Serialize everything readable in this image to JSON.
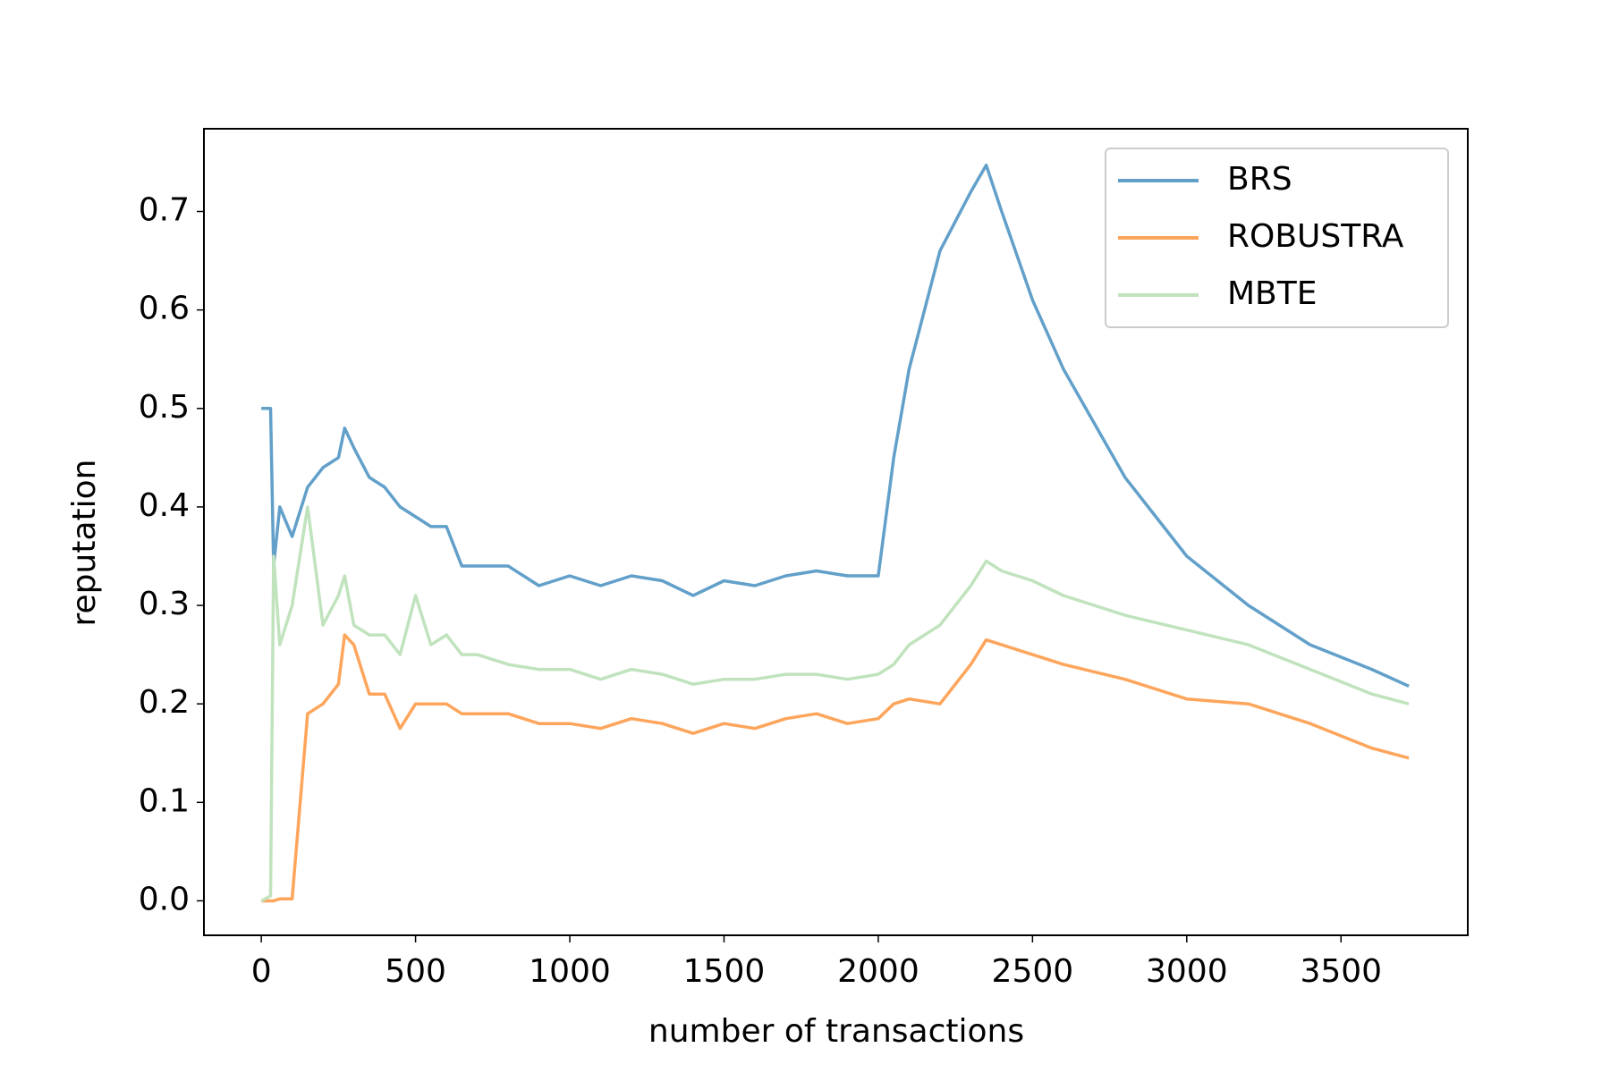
{
  "chart_data": {
    "type": "line",
    "xlabel": "number of transactions",
    "ylabel": "reputation",
    "x": [
      0,
      30,
      40,
      60,
      100,
      150,
      200,
      250,
      270,
      300,
      350,
      400,
      450,
      500,
      550,
      600,
      650,
      700,
      800,
      900,
      1000,
      1100,
      1200,
      1300,
      1400,
      1500,
      1600,
      1700,
      1800,
      1900,
      2000,
      2050,
      2100,
      2200,
      2300,
      2350,
      2400,
      2500,
      2600,
      2800,
      3000,
      3200,
      3400,
      3600,
      3720
    ],
    "series": [
      {
        "name": "BRS",
        "color": "#62a0ca",
        "values": [
          0.5,
          0.5,
          0.34,
          0.4,
          0.37,
          0.42,
          0.44,
          0.45,
          0.48,
          0.46,
          0.43,
          0.42,
          0.4,
          0.39,
          0.38,
          0.38,
          0.34,
          0.34,
          0.34,
          0.32,
          0.33,
          0.32,
          0.33,
          0.325,
          0.31,
          0.325,
          0.32,
          0.33,
          0.335,
          0.33,
          0.33,
          0.45,
          0.54,
          0.66,
          0.72,
          0.747,
          0.7,
          0.61,
          0.54,
          0.43,
          0.35,
          0.3,
          0.26,
          0.235,
          0.218
        ]
      },
      {
        "name": "ROBUSTRA",
        "color": "#fea55c",
        "values": [
          0,
          0,
          0,
          0.002,
          0.002,
          0.19,
          0.2,
          0.22,
          0.27,
          0.26,
          0.21,
          0.21,
          0.175,
          0.2,
          0.2,
          0.2,
          0.19,
          0.19,
          0.19,
          0.18,
          0.18,
          0.175,
          0.185,
          0.18,
          0.17,
          0.18,
          0.175,
          0.185,
          0.19,
          0.18,
          0.185,
          0.2,
          0.205,
          0.2,
          0.24,
          0.265,
          0.26,
          0.25,
          0.24,
          0.225,
          0.205,
          0.2,
          0.18,
          0.155,
          0.145
        ]
      },
      {
        "name": "MBTE",
        "color": "#c0e3bd",
        "values": [
          0,
          0.005,
          0.35,
          0.26,
          0.3,
          0.4,
          0.28,
          0.31,
          0.33,
          0.28,
          0.27,
          0.27,
          0.25,
          0.31,
          0.26,
          0.27,
          0.25,
          0.25,
          0.24,
          0.235,
          0.235,
          0.225,
          0.235,
          0.23,
          0.22,
          0.225,
          0.225,
          0.23,
          0.23,
          0.225,
          0.23,
          0.24,
          0.26,
          0.28,
          0.32,
          0.345,
          0.335,
          0.325,
          0.31,
          0.29,
          0.275,
          0.26,
          0.235,
          0.21,
          0.2
        ]
      }
    ],
    "xlim": [
      -186,
      3911
    ],
    "ylim": [
      -0.035,
      0.784
    ],
    "xticks": [
      0,
      500,
      1000,
      1500,
      2000,
      2500,
      3000,
      3500
    ],
    "yticks": [
      {
        "value": 0,
        "label": "0.0"
      },
      0.1,
      0.2,
      0.3,
      0.4,
      0.5,
      0.6,
      0.7
    ],
    "legend": "upper right"
  }
}
